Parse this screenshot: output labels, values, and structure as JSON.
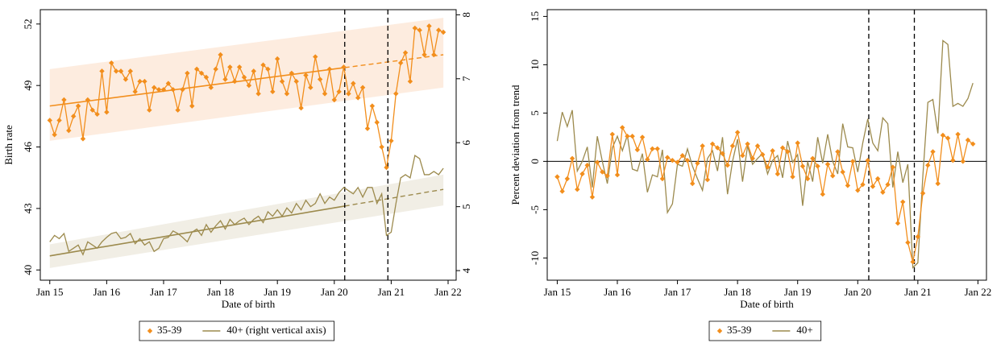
{
  "chart_data": [
    {
      "type": "line",
      "x": [
        0,
        1,
        2,
        3,
        4,
        5,
        6,
        7,
        8,
        9,
        10,
        11,
        12,
        13,
        14,
        15,
        16,
        17,
        18,
        19,
        20,
        21,
        22,
        23,
        24,
        25,
        26,
        27,
        28,
        29,
        30,
        31,
        32,
        33,
        34,
        35,
        36,
        37,
        38,
        39,
        40,
        41,
        42,
        43,
        44,
        45,
        46,
        47,
        48,
        49,
        50,
        51,
        52,
        53,
        54,
        55,
        56,
        57,
        58,
        59,
        60,
        61,
        62,
        63,
        64,
        65,
        66,
        67,
        68,
        69,
        70,
        71,
        72,
        73,
        74,
        75,
        76,
        77,
        78,
        79,
        80,
        81,
        82,
        83
      ],
      "xlim": [
        -2,
        85.7
      ],
      "xticks": [
        {
          "value": 0,
          "label": "Jan 15"
        },
        {
          "value": 12,
          "label": "Jan 16"
        },
        {
          "value": 24,
          "label": "Jan 17"
        },
        {
          "value": 36,
          "label": "Jan 18"
        },
        {
          "value": 48,
          "label": "Jan 19"
        },
        {
          "value": 60,
          "label": "Jan 20"
        },
        {
          "value": 72,
          "label": "Jan 21"
        },
        {
          "value": 84,
          "label": "Jan 22"
        }
      ],
      "ylim": [
        39.5,
        52.7
      ],
      "yticks": [
        40,
        43,
        46,
        49,
        52
      ],
      "y2lim": [
        3.85,
        8.08
      ],
      "y2ticks": [
        4,
        5,
        6,
        7,
        8
      ],
      "x_label": "Date of birth",
      "y_label": "Birth rate",
      "vlines": [
        62.2,
        71.3
      ],
      "legend": "bottom",
      "trends": [
        {
          "axis": "y",
          "color": "#f28e1c",
          "band_color": "#fdeadb",
          "x": [
            0,
            83
          ],
          "values": [
            48.0,
            50.5
          ],
          "lower": [
            46.3,
            48.9
          ],
          "upper": [
            49.8,
            52.3
          ]
        },
        {
          "axis": "y2",
          "color": "#9c8a4d",
          "band_color": "#efece2",
          "x": [
            0,
            83
          ],
          "values": [
            4.23,
            5.27
          ],
          "lower": [
            4.04,
            5.02
          ],
          "upper": [
            4.41,
            5.5
          ]
        }
      ],
      "series": [
        {
          "name": "35-39",
          "color": "#f28e1c",
          "marker": "diamond",
          "values": [
            47.3,
            46.6,
            47.3,
            48.3,
            46.8,
            47.5,
            48.0,
            46.4,
            48.3,
            47.8,
            47.6,
            49.7,
            47.7,
            50.1,
            49.7,
            49.7,
            49.3,
            49.7,
            48.7,
            49.2,
            49.2,
            47.8,
            48.9,
            48.8,
            48.8,
            49.1,
            48.8,
            47.8,
            48.8,
            49.6,
            48.0,
            49.8,
            49.6,
            49.4,
            48.9,
            49.8,
            50.5,
            49.3,
            49.9,
            49.2,
            49.9,
            49.4,
            49.0,
            49.7,
            48.6,
            50.0,
            49.8,
            48.7,
            50.3,
            49.2,
            48.6,
            49.6,
            49.2,
            47.9,
            49.5,
            48.9,
            50.4,
            49.3,
            48.6,
            49.8,
            48.3,
            48.7,
            49.9,
            48.6,
            49.1,
            48.4,
            48.9,
            46.9,
            48.0,
            47.2,
            46.0,
            45.0,
            46.3,
            48.6,
            50.1,
            50.6,
            49.2,
            51.8,
            51.7,
            50.5,
            51.9,
            50.5,
            51.7,
            51.6
          ]
        },
        {
          "name": "40+ (right vertical axis)",
          "color": "#9c8a4d",
          "axis": "y2",
          "values": [
            4.45,
            4.55,
            4.5,
            4.58,
            4.3,
            4.35,
            4.4,
            4.25,
            4.45,
            4.4,
            4.35,
            4.45,
            4.52,
            4.58,
            4.6,
            4.5,
            4.52,
            4.58,
            4.42,
            4.5,
            4.4,
            4.45,
            4.3,
            4.35,
            4.5,
            4.52,
            4.62,
            4.58,
            4.52,
            4.45,
            4.6,
            4.65,
            4.55,
            4.72,
            4.6,
            4.7,
            4.78,
            4.65,
            4.8,
            4.72,
            4.78,
            4.82,
            4.72,
            4.8,
            4.85,
            4.75,
            4.92,
            4.85,
            4.95,
            4.85,
            4.98,
            4.9,
            5.05,
            4.95,
            5.1,
            5.0,
            5.05,
            5.2,
            5.05,
            5.15,
            5.1,
            5.22,
            5.3,
            5.25,
            5.2,
            5.3,
            5.15,
            5.3,
            5.3,
            5.05,
            5.2,
            4.55,
            4.6,
            5.05,
            5.45,
            5.5,
            5.45,
            5.8,
            5.75,
            5.5,
            5.5,
            5.55,
            5.5,
            5.6
          ]
        }
      ]
    },
    {
      "type": "line",
      "x": [
        0,
        1,
        2,
        3,
        4,
        5,
        6,
        7,
        8,
        9,
        10,
        11,
        12,
        13,
        14,
        15,
        16,
        17,
        18,
        19,
        20,
        21,
        22,
        23,
        24,
        25,
        26,
        27,
        28,
        29,
        30,
        31,
        32,
        33,
        34,
        35,
        36,
        37,
        38,
        39,
        40,
        41,
        42,
        43,
        44,
        45,
        46,
        47,
        48,
        49,
        50,
        51,
        52,
        53,
        54,
        55,
        56,
        57,
        58,
        59,
        60,
        61,
        62,
        63,
        64,
        65,
        66,
        67,
        68,
        69,
        70,
        71,
        72,
        73,
        74,
        75,
        76,
        77,
        78,
        79,
        80,
        81,
        82,
        83
      ],
      "xlim": [
        -2,
        85.7
      ],
      "xticks": [
        {
          "value": 0,
          "label": "Jan 15"
        },
        {
          "value": 12,
          "label": "Jan 16"
        },
        {
          "value": 24,
          "label": "Jan 17"
        },
        {
          "value": 36,
          "label": "Jan 18"
        },
        {
          "value": 48,
          "label": "Jan 19"
        },
        {
          "value": 60,
          "label": "Jan 20"
        },
        {
          "value": 72,
          "label": "Jan 21"
        },
        {
          "value": 84,
          "label": "Jan 22"
        }
      ],
      "ylim": [
        -12.3,
        15.7
      ],
      "yticks": [
        -10,
        -5,
        0,
        5,
        10,
        15
      ],
      "x_label": "Date of birth",
      "y_label": "Percent deviation from trend",
      "vlines": [
        62.2,
        71.3
      ],
      "hline": 0,
      "legend": "bottom",
      "series": [
        {
          "name": "35-39",
          "color": "#f28e1c",
          "marker": "diamond",
          "values": [
            -1.6,
            -3.1,
            -1.8,
            0.3,
            -2.9,
            -1.3,
            -0.4,
            -3.7,
            -0.1,
            -1.1,
            -1.5,
            2.8,
            -1.4,
            3.5,
            2.6,
            2.6,
            1.2,
            2.5,
            0.2,
            1.3,
            1.3,
            -1.8,
            0.4,
            0.1,
            -0.1,
            0.6,
            0.1,
            -2.3,
            -0.2,
            1.6,
            -1.9,
            1.8,
            1.4,
            0.8,
            -0.4,
            1.6,
            3.0,
            0.6,
            1.8,
            0.3,
            1.6,
            0.7,
            -0.6,
            1.1,
            -1.3,
            1.4,
            1.0,
            -1.6,
            1.9,
            -0.5,
            -1.8,
            0.3,
            -0.5,
            -3.4,
            -0.3,
            -1.5,
            1.0,
            -1.1,
            -2.5,
            0.0,
            -3.0,
            -2.4,
            0.1,
            -2.6,
            -1.8,
            -3.2,
            -2.4,
            -0.6,
            -6.4,
            -4.2,
            -8.4,
            -10.4,
            -7.8,
            -3.3,
            -0.4,
            1.0,
            -2.3,
            2.7,
            2.4,
            0.1,
            2.8,
            0.0,
            2.2,
            1.8
          ]
        },
        {
          "name": "40+",
          "color": "#9c8a4d",
          "values": [
            2.1,
            5.1,
            3.6,
            5.3,
            -1.0,
            0.0,
            1.5,
            -2.7,
            2.6,
            0.0,
            -2.3,
            1.4,
            2.6,
            1.1,
            2.7,
            -0.8,
            -1.0,
            0.8,
            -3.2,
            -1.4,
            -1.6,
            1.2,
            -5.3,
            -4.4,
            -0.3,
            -0.5,
            1.3,
            -0.5,
            -1.8,
            -3.0,
            0.3,
            1.1,
            -1.0,
            2.5,
            -3.4,
            0.0,
            2.3,
            -2.1,
            1.6,
            -0.3,
            0.3,
            0.8,
            -1.3,
            0.1,
            0.6,
            -1.7,
            2.1,
            -0.1,
            0.7,
            -4.6,
            0.0,
            -2.1,
            2.5,
            -0.2,
            2.8,
            0.0,
            -1.3,
            3.9,
            1.5,
            1.4,
            -1.1,
            1.9,
            4.4,
            1.9,
            1.1,
            4.5,
            3.9,
            -2.7,
            1.0,
            -2.2,
            -0.3,
            -11.0,
            -10.5,
            -1.5,
            6.1,
            6.4,
            2.9,
            12.5,
            12.1,
            5.7,
            6.0,
            5.7,
            6.5,
            8.1
          ]
        }
      ]
    }
  ]
}
